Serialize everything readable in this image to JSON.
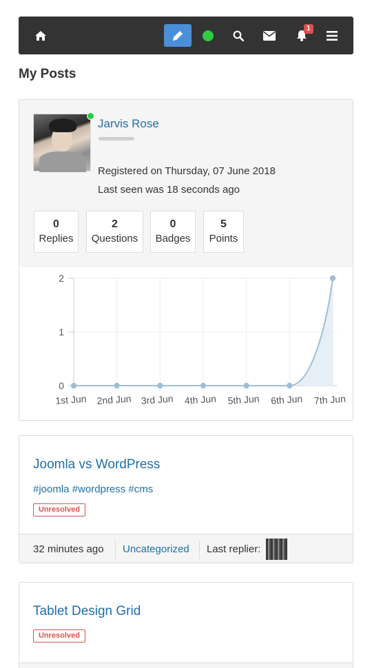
{
  "navbar": {
    "icons": [
      "home-icon",
      "pencil-icon",
      "online-status-icon",
      "search-icon",
      "envelope-icon",
      "bell-icon",
      "hamburger-menu-icon"
    ],
    "notification_count": "1",
    "colors": {
      "bar": "#333333",
      "edit_button": "#4a8fd8",
      "online": "#2ecc40",
      "badge": "#d9534f"
    }
  },
  "page": {
    "title": "My Posts"
  },
  "profile": {
    "name": "Jarvis Rose",
    "registered": "Registered on Thursday, 07 June 2018",
    "last_seen": "Last seen was 18 seconds ago",
    "stats": [
      {
        "value": "0",
        "label": "Replies"
      },
      {
        "value": "2",
        "label": "Questions"
      },
      {
        "value": "0",
        "label": "Badges"
      },
      {
        "value": "5",
        "label": "Points"
      }
    ]
  },
  "chart_data": {
    "type": "area",
    "categories": [
      "1st Jun",
      "2nd Jun",
      "3rd Jun",
      "4th Jun",
      "5th Jun",
      "6th Jun",
      "7th Jun"
    ],
    "values": [
      0,
      0,
      0,
      0,
      0,
      0,
      2
    ],
    "y_ticks": [
      "0",
      "1",
      "2"
    ],
    "ylim": [
      0,
      2
    ],
    "grid": true,
    "line_color": "#9fbfd6",
    "fill_color": "#e6eff6"
  },
  "posts": [
    {
      "title": "Joomla vs WordPress",
      "tags": "#joomla #wordpress #cms",
      "status": "Unresolved",
      "time": "32 minutes ago",
      "category": "Uncategorized",
      "last_replier_label": "Last replier:"
    },
    {
      "title": "Tablet Design Grid",
      "status": "Unresolved"
    }
  ]
}
